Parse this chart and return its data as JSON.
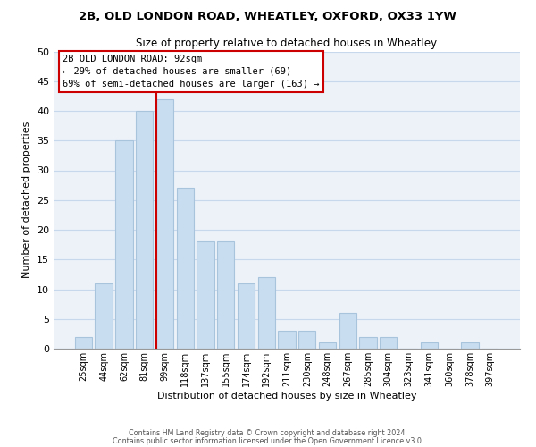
{
  "title": "2B, OLD LONDON ROAD, WHEATLEY, OXFORD, OX33 1YW",
  "subtitle": "Size of property relative to detached houses in Wheatley",
  "xlabel": "Distribution of detached houses by size in Wheatley",
  "ylabel": "Number of detached properties",
  "bar_labels": [
    "25sqm",
    "44sqm",
    "62sqm",
    "81sqm",
    "99sqm",
    "118sqm",
    "137sqm",
    "155sqm",
    "174sqm",
    "192sqm",
    "211sqm",
    "230sqm",
    "248sqm",
    "267sqm",
    "285sqm",
    "304sqm",
    "323sqm",
    "341sqm",
    "360sqm",
    "378sqm",
    "397sqm"
  ],
  "bar_values": [
    2,
    11,
    35,
    40,
    42,
    27,
    18,
    18,
    11,
    12,
    3,
    3,
    1,
    6,
    2,
    2,
    0,
    1,
    0,
    1,
    0
  ],
  "bar_color": "#c9ddf0",
  "bar_edge_color": "#a8c4dc",
  "vline_color": "#cc0000",
  "ylim": [
    0,
    50
  ],
  "yticks": [
    0,
    5,
    10,
    15,
    20,
    25,
    30,
    35,
    40,
    45,
    50
  ],
  "annotation_line1": "2B OLD LONDON ROAD: 92sqm",
  "annotation_line2": "← 29% of detached houses are smaller (69)",
  "annotation_line3": "69% of semi-detached houses are larger (163) →",
  "footer_line1": "Contains HM Land Registry data © Crown copyright and database right 2024.",
  "footer_line2": "Contains public sector information licensed under the Open Government Licence v3.0.",
  "grid_color": "#c8d8ec",
  "background_color": "#edf2f9"
}
